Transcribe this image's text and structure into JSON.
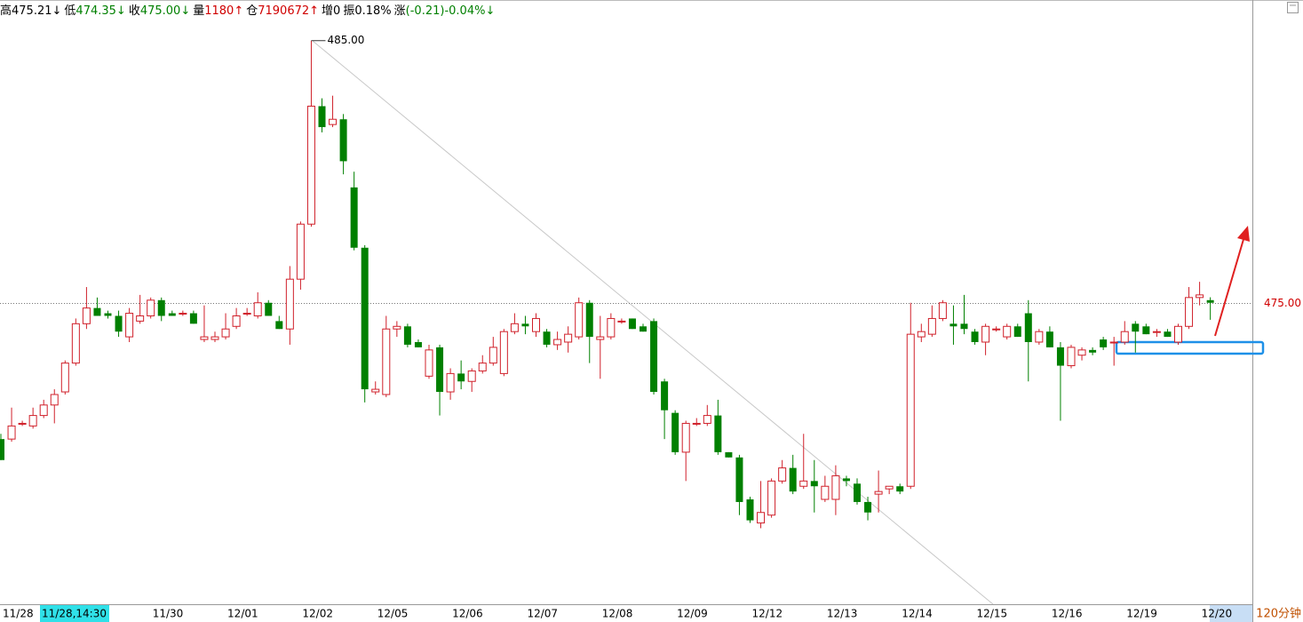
{
  "chart_data": {
    "type": "candlestick",
    "header": [
      {
        "label": "高",
        "value": "475.21↓",
        "color": "#000000"
      },
      {
        "label": "低",
        "value": "474.35↓",
        "color": "#008000"
      },
      {
        "label": "收",
        "value": "475.00↓",
        "color": "#008000"
      },
      {
        "label": "量",
        "value": "1180↑",
        "color": "#d00000"
      },
      {
        "label": "仓",
        "value": "7190672↑",
        "color": "#d00000"
      },
      {
        "label": "增",
        "value": "0",
        "color": "#000000"
      },
      {
        "label": "振",
        "value": "0.18%",
        "color": "#000000"
      },
      {
        "label": "涨",
        "value": "(-0.21)-0.04%↓",
        "color": "#008000"
      }
    ],
    "categories": [
      "11/28",
      null,
      null,
      null,
      null,
      null,
      null,
      null,
      null,
      null,
      null,
      null,
      null,
      null,
      "11/30",
      null,
      null,
      null,
      null,
      null,
      null,
      "12/01",
      null,
      null,
      null,
      null,
      null,
      null,
      "12/02",
      null,
      null,
      null,
      null,
      null,
      null,
      "12/05",
      null,
      null,
      null,
      null,
      null,
      null,
      "12/06",
      null,
      null,
      null,
      null,
      null,
      null,
      "12/07",
      null,
      null,
      null,
      null,
      null,
      null,
      "12/08",
      null,
      null,
      null,
      null,
      null,
      null,
      "12/09",
      null,
      null,
      null,
      null,
      null,
      null,
      "12/12",
      null,
      null,
      null,
      null,
      null,
      null,
      "12/13",
      null,
      null,
      null,
      null,
      null,
      null,
      "12/14",
      null,
      null,
      null,
      null,
      null,
      null,
      "12/15",
      null,
      null,
      null,
      null,
      null,
      null,
      "12/16",
      null,
      null,
      null,
      null,
      null,
      null,
      "12/19",
      null,
      null,
      null,
      null,
      null,
      null,
      "12/20",
      null
    ],
    "ohlc": [
      [
        469.8,
        470.0,
        469.0,
        469.0
      ],
      [
        469.8,
        471.0,
        469.7,
        470.3
      ],
      [
        470.4,
        470.5,
        470.3,
        470.4
      ],
      [
        470.3,
        471.0,
        470.2,
        470.7
      ],
      [
        470.7,
        471.3,
        470.6,
        471.1
      ],
      [
        471.1,
        471.7,
        470.4,
        471.5
      ],
      [
        471.6,
        472.8,
        471.5,
        472.7
      ],
      [
        472.7,
        474.4,
        472.6,
        474.2
      ],
      [
        474.2,
        475.6,
        474.0,
        474.8
      ],
      [
        474.8,
        475.2,
        474.5,
        474.5
      ],
      [
        474.6,
        474.7,
        474.4,
        474.5
      ],
      [
        474.5,
        474.7,
        473.7,
        473.9
      ],
      [
        473.7,
        474.8,
        473.5,
        474.6
      ],
      [
        474.3,
        475.3,
        474.2,
        474.5
      ],
      [
        474.5,
        475.2,
        474.4,
        475.1
      ],
      [
        475.1,
        475.2,
        474.3,
        474.5
      ],
      [
        474.6,
        474.7,
        474.5,
        474.5
      ],
      [
        474.6,
        474.7,
        474.5,
        474.6
      ],
      [
        474.6,
        474.7,
        474.2,
        474.2
      ],
      [
        473.6,
        474.9,
        473.5,
        473.7
      ],
      [
        473.6,
        473.9,
        473.5,
        473.7
      ],
      [
        473.7,
        474.6,
        473.6,
        474.0
      ],
      [
        474.1,
        474.8,
        474.0,
        474.5
      ],
      [
        474.6,
        474.8,
        474.5,
        474.6
      ],
      [
        474.5,
        475.4,
        474.4,
        475.0
      ],
      [
        475.0,
        475.1,
        474.5,
        474.5
      ],
      [
        474.3,
        474.5,
        474.0,
        474.0
      ],
      [
        474.0,
        476.4,
        473.4,
        475.9
      ],
      [
        475.9,
        478.1,
        475.5,
        478.0
      ],
      [
        478.0,
        485.0,
        477.9,
        482.5
      ],
      [
        482.5,
        482.8,
        481.5,
        481.7
      ],
      [
        481.8,
        482.9,
        481.7,
        482.0
      ],
      [
        482.0,
        482.2,
        479.9,
        480.4
      ],
      [
        479.4,
        480.0,
        477.0,
        477.1
      ],
      [
        477.1,
        477.2,
        471.2,
        471.7
      ],
      [
        471.6,
        472.0,
        471.5,
        471.7
      ],
      [
        471.5,
        474.5,
        471.4,
        474.0
      ],
      [
        474.0,
        474.3,
        473.7,
        474.1
      ],
      [
        474.1,
        474.2,
        473.3,
        473.4
      ],
      [
        473.5,
        473.6,
        473.3,
        473.3
      ],
      [
        472.2,
        473.4,
        472.1,
        473.2
      ],
      [
        473.3,
        473.4,
        470.7,
        471.6
      ],
      [
        471.6,
        472.5,
        471.3,
        472.3
      ],
      [
        472.3,
        472.8,
        471.7,
        472.0
      ],
      [
        472.0,
        472.5,
        471.6,
        472.4
      ],
      [
        472.4,
        473.0,
        472.3,
        472.7
      ],
      [
        472.7,
        473.7,
        472.6,
        473.3
      ],
      [
        472.3,
        474.0,
        472.2,
        473.9
      ],
      [
        473.9,
        474.6,
        473.8,
        474.2
      ],
      [
        474.2,
        474.5,
        473.8,
        474.1
      ],
      [
        473.9,
        474.6,
        473.7,
        474.4
      ],
      [
        473.9,
        474.0,
        473.3,
        473.4
      ],
      [
        473.4,
        473.9,
        473.2,
        473.6
      ],
      [
        473.5,
        474.1,
        473.1,
        473.8
      ],
      [
        473.7,
        475.2,
        473.6,
        475.0
      ],
      [
        475.0,
        475.1,
        472.7,
        473.7
      ],
      [
        473.6,
        474.5,
        472.1,
        473.7
      ],
      [
        473.7,
        474.6,
        473.6,
        474.4
      ],
      [
        474.3,
        474.4,
        474.2,
        474.3
      ],
      [
        474.4,
        474.4,
        474.0,
        474.0
      ],
      [
        474.1,
        474.2,
        473.9,
        473.9
      ],
      [
        474.3,
        474.4,
        471.5,
        471.6
      ],
      [
        472.0,
        472.1,
        469.8,
        470.9
      ],
      [
        470.8,
        470.9,
        469.2,
        469.3
      ],
      [
        469.3,
        470.5,
        468.2,
        470.4
      ],
      [
        470.4,
        470.6,
        470.3,
        470.4
      ],
      [
        470.4,
        471.1,
        470.3,
        470.7
      ],
      [
        470.7,
        471.3,
        469.2,
        469.3
      ],
      [
        469.3,
        469.3,
        469.1,
        469.1
      ],
      [
        469.1,
        469.2,
        466.9,
        467.4
      ],
      [
        467.5,
        467.6,
        466.6,
        466.7
      ],
      [
        466.6,
        468.2,
        466.4,
        467.0
      ],
      [
        466.9,
        468.3,
        466.8,
        468.2
      ],
      [
        468.2,
        469.0,
        468.1,
        468.7
      ],
      [
        468.7,
        469.2,
        467.7,
        467.8
      ],
      [
        468.0,
        470.0,
        467.9,
        468.2
      ],
      [
        468.2,
        469.0,
        467.0,
        468.0
      ],
      [
        467.5,
        468.4,
        467.4,
        468.0
      ],
      [
        467.5,
        468.8,
        466.9,
        468.4
      ],
      [
        468.3,
        468.4,
        468.0,
        468.2
      ],
      [
        468.1,
        468.3,
        467.3,
        467.4
      ],
      [
        467.4,
        467.6,
        466.7,
        467.0
      ],
      [
        467.7,
        468.6,
        467.0,
        467.8
      ],
      [
        467.9,
        468.0,
        467.7,
        468.0
      ],
      [
        468.0,
        468.1,
        467.7,
        467.8
      ],
      [
        468.0,
        475.0,
        467.9,
        473.8
      ],
      [
        473.7,
        474.2,
        473.5,
        473.9
      ],
      [
        473.8,
        474.9,
        473.7,
        474.4
      ],
      [
        474.4,
        475.1,
        474.3,
        475.0
      ],
      [
        474.2,
        474.9,
        473.4,
        474.1
      ],
      [
        474.2,
        475.3,
        473.8,
        474.0
      ],
      [
        473.9,
        474.0,
        473.4,
        473.5
      ],
      [
        473.5,
        474.2,
        473.0,
        474.1
      ],
      [
        474.0,
        474.1,
        473.9,
        474.0
      ],
      [
        473.7,
        474.2,
        473.6,
        474.1
      ],
      [
        474.1,
        474.2,
        473.7,
        473.7
      ],
      [
        474.6,
        475.1,
        472.0,
        473.5
      ],
      [
        473.5,
        474.0,
        473.4,
        473.9
      ],
      [
        473.9,
        474.1,
        473.3,
        473.3
      ],
      [
        473.3,
        473.5,
        470.5,
        472.6
      ],
      [
        472.6,
        473.4,
        472.5,
        473.3
      ],
      [
        473.0,
        473.3,
        472.8,
        473.2
      ],
      [
        473.2,
        473.3,
        473.0,
        473.1
      ],
      [
        473.6,
        473.7,
        473.2,
        473.3
      ],
      [
        473.5,
        473.7,
        472.6,
        473.5
      ],
      [
        473.5,
        474.3,
        473.4,
        473.9
      ],
      [
        474.2,
        474.3,
        473.1,
        473.9
      ],
      [
        474.1,
        474.2,
        473.8,
        473.8
      ],
      [
        473.9,
        474.0,
        473.7,
        473.9
      ],
      [
        473.9,
        474.0,
        473.7,
        473.7
      ],
      [
        473.5,
        474.2,
        473.4,
        474.1
      ],
      [
        474.1,
        475.6,
        474.0,
        475.2
      ],
      [
        475.2,
        475.8,
        474.9,
        475.3
      ],
      [
        475.1,
        475.21,
        474.35,
        475.0
      ]
    ],
    "up_color": "#d0202a",
    "down_color": "#008000",
    "ylim": [
      463.5,
      486.55
    ],
    "last_price": {
      "value": 475,
      "label": "475.00"
    },
    "high_label": {
      "value": 485,
      "label": "485.00"
    },
    "cursor_label": "11/28,14:30",
    "period_label": "120分钟"
  }
}
